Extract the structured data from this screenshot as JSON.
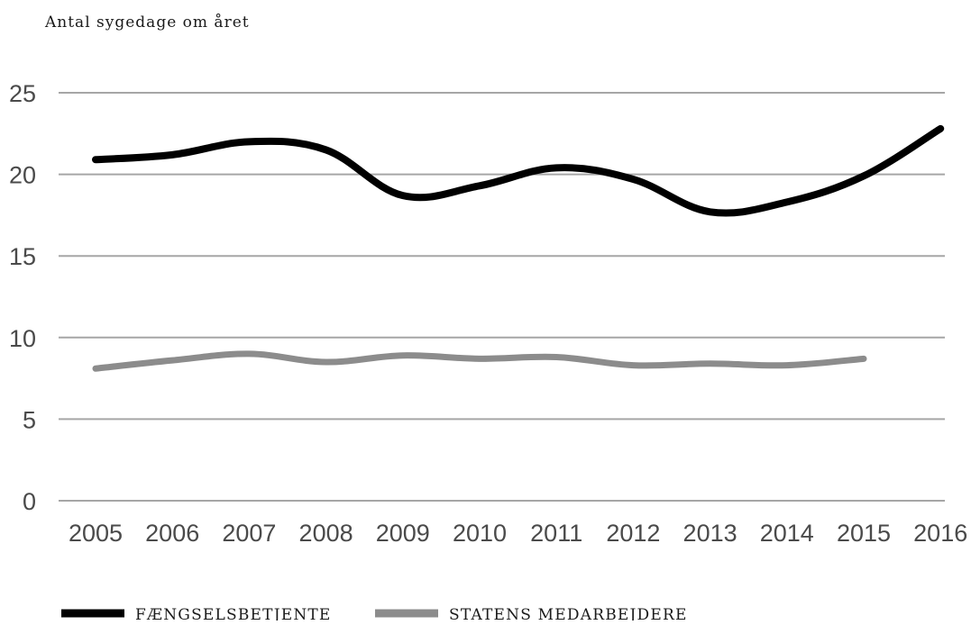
{
  "chart_data": {
    "type": "line",
    "ylabel": "Antal sygedage om året",
    "title": "",
    "xlabel": "",
    "categories": [
      "2005",
      "2006",
      "2007",
      "2008",
      "2009",
      "2010",
      "2011",
      "2012",
      "2013",
      "2014",
      "2015",
      "2016"
    ],
    "yticks": [
      "0",
      "5",
      "10",
      "15",
      "20",
      "25"
    ],
    "ylim": [
      0,
      25
    ],
    "grid": true,
    "legend_position": "bottom-left",
    "series": [
      {
        "name": "FÆNGSELSBETJENTE",
        "color": "#000000",
        "values": [
          20.9,
          21.2,
          22.0,
          21.5,
          18.7,
          19.3,
          20.4,
          19.7,
          17.7,
          18.3,
          19.9,
          22.8
        ]
      },
      {
        "name": "STATENS MEDARBEJDERE",
        "color": "#8c8c8c",
        "values": [
          8.1,
          8.6,
          9.0,
          8.5,
          8.9,
          8.7,
          8.8,
          8.3,
          8.4,
          8.3,
          8.7,
          null
        ]
      }
    ]
  }
}
